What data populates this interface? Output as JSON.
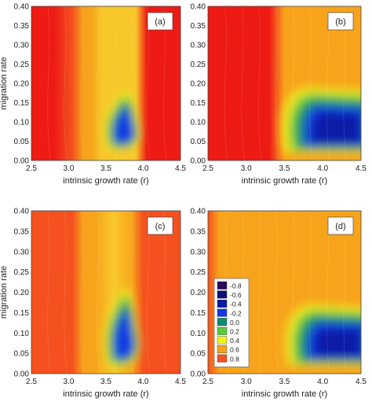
{
  "chart_data": [
    {
      "type": "heatmap",
      "panel_label": "(a)",
      "xlabel": "intrinsic growth rate (r)",
      "ylabel": "migration rate",
      "xlim": [
        2.5,
        4.5
      ],
      "ylim": [
        0.0,
        0.4
      ],
      "x_ticks": [
        "2.5",
        "3.0",
        "3.5",
        "4.0",
        "4.5"
      ],
      "y_ticks": [
        "0.00",
        "0.05",
        "0.10",
        "0.15",
        "0.20",
        "0.25",
        "0.30",
        "0.35",
        "0.40"
      ],
      "pattern": "narrow_band",
      "low_region": {
        "r": [
          3.45,
          3.95
        ],
        "m": [
          0.03,
          0.18
        ],
        "min_value": -0.2
      },
      "columns": [
        {
          "r": 2.5,
          "value": 0.8
        },
        {
          "r": 2.8,
          "value": 0.8
        },
        {
          "r": 3.05,
          "value": 0.75
        },
        {
          "r": 3.2,
          "value": 0.6
        },
        {
          "r": 3.3,
          "value": 0.5
        },
        {
          "r": 3.45,
          "value": 0.45
        },
        {
          "r": 3.7,
          "value": 0.4
        },
        {
          "r": 3.9,
          "value": 0.45
        },
        {
          "r": 4.05,
          "value": 0.8
        },
        {
          "r": 4.5,
          "value": 0.8
        }
      ]
    },
    {
      "type": "heatmap",
      "panel_label": "(b)",
      "xlabel": "intrinsic growth rate (r)",
      "ylabel": "",
      "xlim": [
        2.5,
        4.5
      ],
      "ylim": [
        0.0,
        0.4
      ],
      "x_ticks": [
        "2.5",
        "3.0",
        "3.5",
        "4.0",
        "4.5"
      ],
      "y_ticks": [
        "0.00",
        "0.05",
        "0.10",
        "0.15",
        "0.20",
        "0.25",
        "0.30",
        "0.35",
        "0.40"
      ],
      "pattern": "wide_band",
      "low_region": {
        "r": [
          3.45,
          4.5
        ],
        "m": [
          0.02,
          0.19
        ],
        "min_value": -0.4
      },
      "columns": [
        {
          "r": 2.5,
          "value": 0.8
        },
        {
          "r": 3.3,
          "value": 0.8
        },
        {
          "r": 3.38,
          "value": 0.7
        },
        {
          "r": 3.5,
          "value": 0.55
        },
        {
          "r": 3.8,
          "value": 0.6
        },
        {
          "r": 4.2,
          "value": 0.55
        },
        {
          "r": 4.5,
          "value": 0.6
        }
      ]
    },
    {
      "type": "heatmap",
      "panel_label": "(c)",
      "xlabel": "intrinsic growth rate (r)",
      "ylabel": "migration rate",
      "xlim": [
        2.5,
        4.5
      ],
      "ylim": [
        0.0,
        0.4
      ],
      "x_ticks": [
        "2.5",
        "3.0",
        "3.5",
        "4.0",
        "4.5"
      ],
      "y_ticks": [
        "0.00",
        "0.05",
        "0.10",
        "0.15",
        "0.20",
        "0.25",
        "0.30",
        "0.35",
        "0.40"
      ],
      "pattern": "narrow_band",
      "low_region": {
        "r": [
          3.45,
          3.95
        ],
        "m": [
          0.02,
          0.21
        ],
        "min_value": -0.2
      },
      "columns": [
        {
          "r": 2.5,
          "value": 0.7
        },
        {
          "r": 3.05,
          "value": 0.7
        },
        {
          "r": 3.2,
          "value": 0.6
        },
        {
          "r": 3.35,
          "value": 0.5
        },
        {
          "r": 3.6,
          "value": 0.45
        },
        {
          "r": 3.85,
          "value": 0.5
        },
        {
          "r": 4.0,
          "value": 0.65
        },
        {
          "r": 4.5,
          "value": 0.7
        }
      ]
    },
    {
      "type": "heatmap",
      "panel_label": "(d)",
      "xlabel": "intrinsic growth rate (r)",
      "ylabel": "",
      "xlim": [
        2.5,
        4.5
      ],
      "ylim": [
        0.0,
        0.4
      ],
      "x_ticks": [
        "2.5",
        "3.0",
        "3.5",
        "4.0",
        "4.5"
      ],
      "y_ticks": [
        "0.00",
        "0.05",
        "0.10",
        "0.15",
        "0.20",
        "0.25",
        "0.30",
        "0.35",
        "0.40"
      ],
      "pattern": "wide_band",
      "low_region": {
        "r": [
          3.5,
          4.5
        ],
        "m": [
          0.02,
          0.17
        ],
        "min_value": -0.4
      },
      "columns": [
        {
          "r": 2.5,
          "value": 0.7
        },
        {
          "r": 2.65,
          "value": 0.6
        },
        {
          "r": 3.0,
          "value": 0.6
        },
        {
          "r": 3.3,
          "value": 0.55
        },
        {
          "r": 3.6,
          "value": 0.5
        },
        {
          "r": 4.0,
          "value": 0.55
        },
        {
          "r": 4.5,
          "value": 0.6
        }
      ],
      "legend": {
        "position": "left-center",
        "entries": [
          {
            "label": "-0.8",
            "color": "#2a0a5e"
          },
          {
            "label": "-0.6",
            "color": "#0d0d7a"
          },
          {
            "label": "-0.4",
            "color": "#0a1aa8"
          },
          {
            "label": "-0.2",
            "color": "#1437e6"
          },
          {
            "label": "0.0",
            "color": "#0f8a6e"
          },
          {
            "label": "0.2",
            "color": "#5ec93a"
          },
          {
            "label": "0.4",
            "color": "#f2f21e"
          },
          {
            "label": "0.6",
            "color": "#f7a41c"
          },
          {
            "label": "0.8",
            "color": "#f4511e"
          }
        ]
      }
    }
  ],
  "colors": {
    "deep_red": "#ee1a14",
    "red_orange": "#f4511e",
    "orange": "#f7a41c",
    "yellow": "#f2f21e",
    "green": "#5ec93a",
    "teal": "#0f8a6e",
    "blue": "#1437e6",
    "dark_blue": "#0a1aa8"
  }
}
